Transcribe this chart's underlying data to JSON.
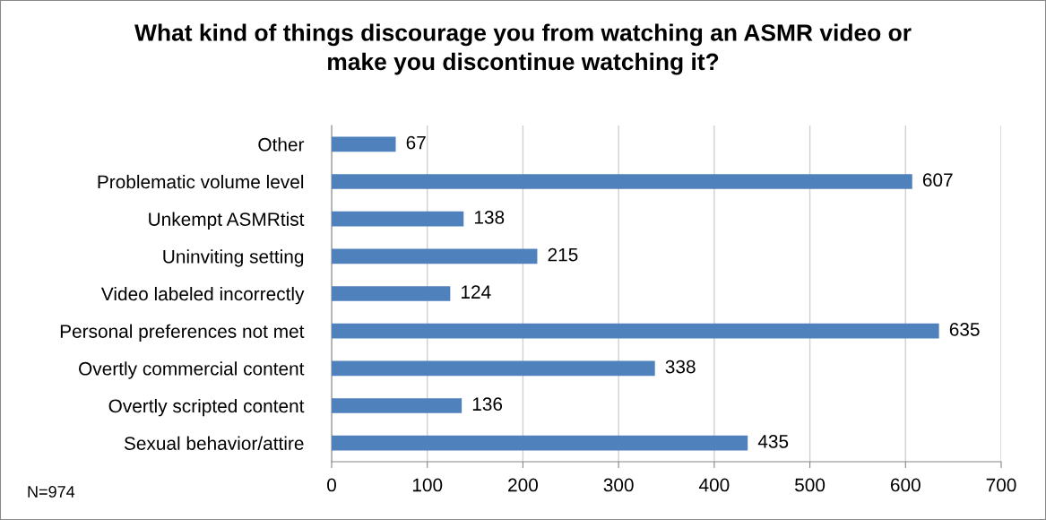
{
  "chart_data": {
    "type": "bar",
    "orientation": "horizontal",
    "title": "What kind of things discourage you from watching an ASMR video or\nmake you discontinue watching it?",
    "categories": [
      "Other",
      "Problematic volume level",
      "Unkempt ASMRtist",
      "Uninviting setting",
      "Video labeled incorrectly",
      "Personal preferences not met",
      "Overtly commercial content",
      "Overtly scripted content",
      "Sexual behavior/attire"
    ],
    "values": [
      67,
      607,
      138,
      215,
      124,
      635,
      338,
      136,
      435
    ],
    "color": "#4f81bd",
    "xlim": [
      0,
      700
    ],
    "xticks": [
      0,
      100,
      200,
      300,
      400,
      500,
      600,
      700
    ],
    "grid": "x",
    "data_labels": true,
    "annotations": [
      "N=974"
    ]
  }
}
